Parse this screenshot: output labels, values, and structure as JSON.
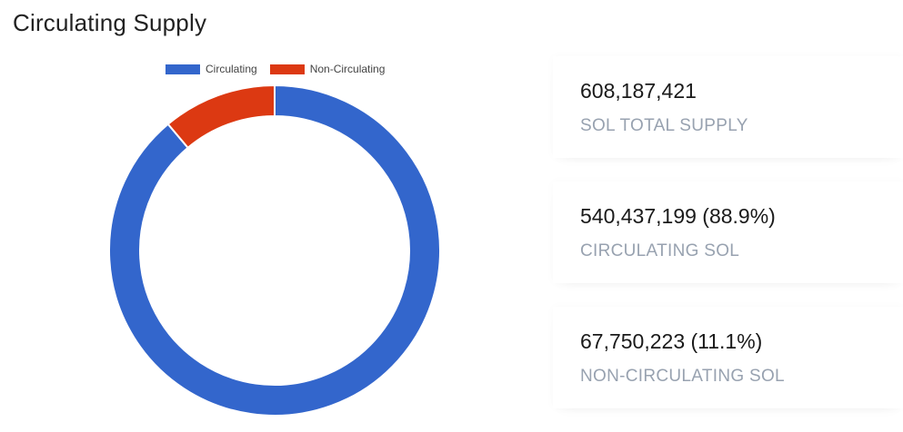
{
  "page": {
    "title": "Circulating Supply"
  },
  "chart_data": {
    "type": "pie",
    "donut": true,
    "legend_position": "top",
    "categories": [
      "Circulating",
      "Non-Circulating"
    ],
    "values": [
      540437199,
      67750223
    ],
    "colors": [
      "#3366cc",
      "#dc3912"
    ]
  },
  "stats": [
    {
      "value": "608,187,421",
      "label": "SOL TOTAL SUPPLY"
    },
    {
      "value": "540,437,199 (88.9%)",
      "label": "CIRCULATING SOL"
    },
    {
      "value": "67,750,223 (11.1%)",
      "label": "NON-CIRCULATING SOL"
    }
  ]
}
